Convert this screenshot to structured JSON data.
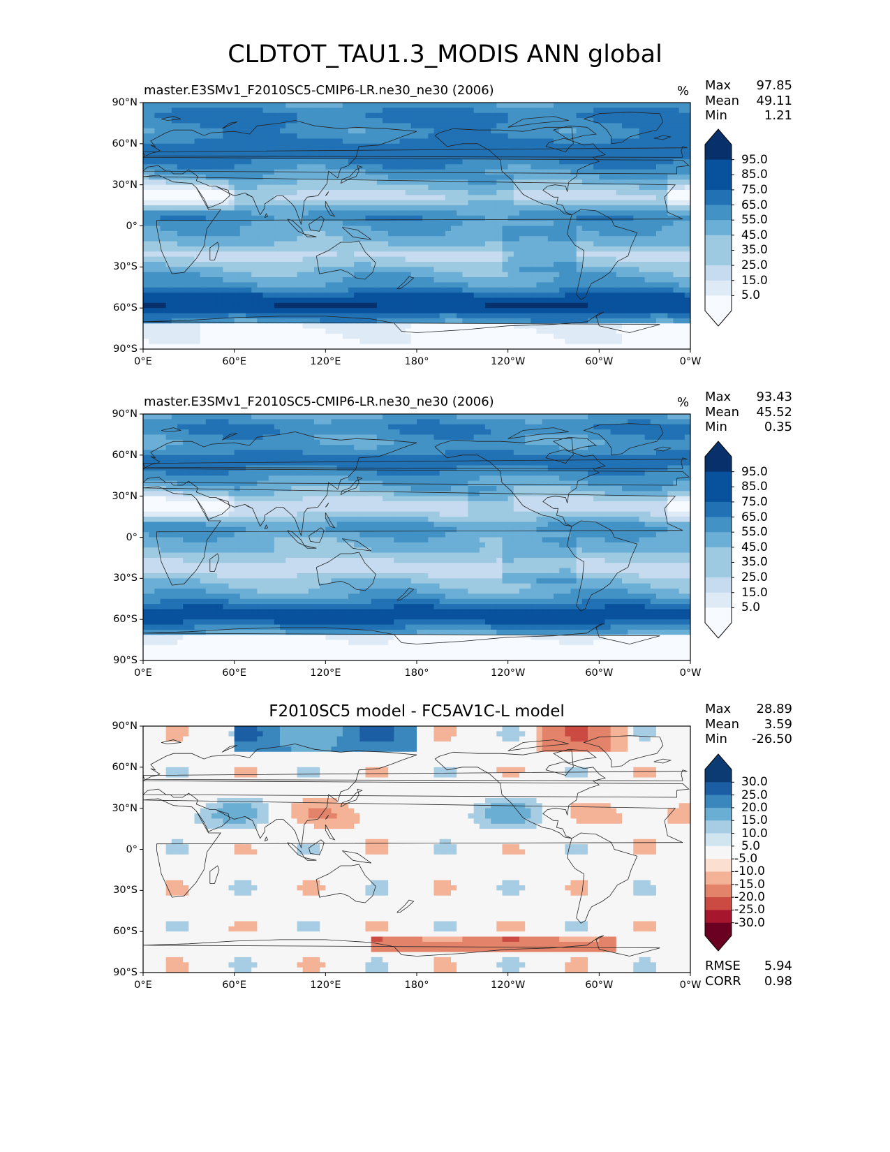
{
  "figure": {
    "title": "CLDTOT_TAU1.3_MODIS ANN global"
  },
  "panels": [
    {
      "title": "master.E3SMv1_F2010SC5-CMIP6-LR.ne30_ne30 (2006)",
      "units": "%",
      "stats": {
        "max_label": "Max",
        "max": "97.85",
        "mean_label": "Mean",
        "mean": "49.11",
        "min_label": "Min",
        "min": "1.21"
      },
      "colorbar": {
        "labels": [
          "95.0",
          "85.0",
          "75.0",
          "65.0",
          "55.0",
          "45.0",
          "35.0",
          "25.0",
          "15.0",
          "5.0"
        ]
      }
    },
    {
      "title": "master.E3SMv1_F2010SC5-CMIP6-LR.ne30_ne30 (2006)",
      "units": "%",
      "stats": {
        "max_label": "Max",
        "max": "93.43",
        "mean_label": "Mean",
        "mean": "45.52",
        "min_label": "Min",
        "min": "0.35"
      },
      "colorbar": {
        "labels": [
          "95.0",
          "85.0",
          "75.0",
          "65.0",
          "55.0",
          "45.0",
          "35.0",
          "25.0",
          "15.0",
          "5.0"
        ]
      }
    },
    {
      "title": "F2010SC5 model - FC5AV1C-L model",
      "stats": {
        "max_label": "Max",
        "max": "28.89",
        "mean_label": "Mean",
        "mean": "3.59",
        "min_label": "Min",
        "min": "-26.50"
      },
      "colorbar": {
        "labels": [
          "30.0",
          "25.0",
          "20.0",
          "15.0",
          "10.0",
          "5.0",
          "-5.0",
          "-10.0",
          "-15.0",
          "-20.0",
          "-25.0",
          "-30.0"
        ]
      },
      "metrics": {
        "rmse_label": "RMSE",
        "rmse": "5.94",
        "corr_label": "CORR",
        "corr": "0.98"
      }
    }
  ],
  "axes": {
    "lat_ticks": [
      "90°N",
      "60°N",
      "30°N",
      "0°",
      "30°S",
      "60°S",
      "90°S"
    ],
    "lon_ticks": [
      "0°E",
      "60°E",
      "120°E",
      "180°",
      "120°W",
      "60°W",
      "0°W"
    ]
  },
  "colors": {
    "blues": [
      "#f7fbff",
      "#deebf7",
      "#c6dbef",
      "#9ecae1",
      "#6baed6",
      "#4292c6",
      "#2171b5",
      "#08519c",
      "#08306b"
    ],
    "diff_pos": [
      "#f6f6f6",
      "#d1e5f0",
      "#a6cde3",
      "#6aaed4",
      "#3a87be",
      "#1c5ea3",
      "#0c3a73"
    ],
    "diff_neg": [
      "#f6f6f6",
      "#fbe0d1",
      "#f4b297",
      "#e2836a",
      "#cb4b43",
      "#a6172d",
      "#6a0022"
    ],
    "coast": "#222222"
  }
}
